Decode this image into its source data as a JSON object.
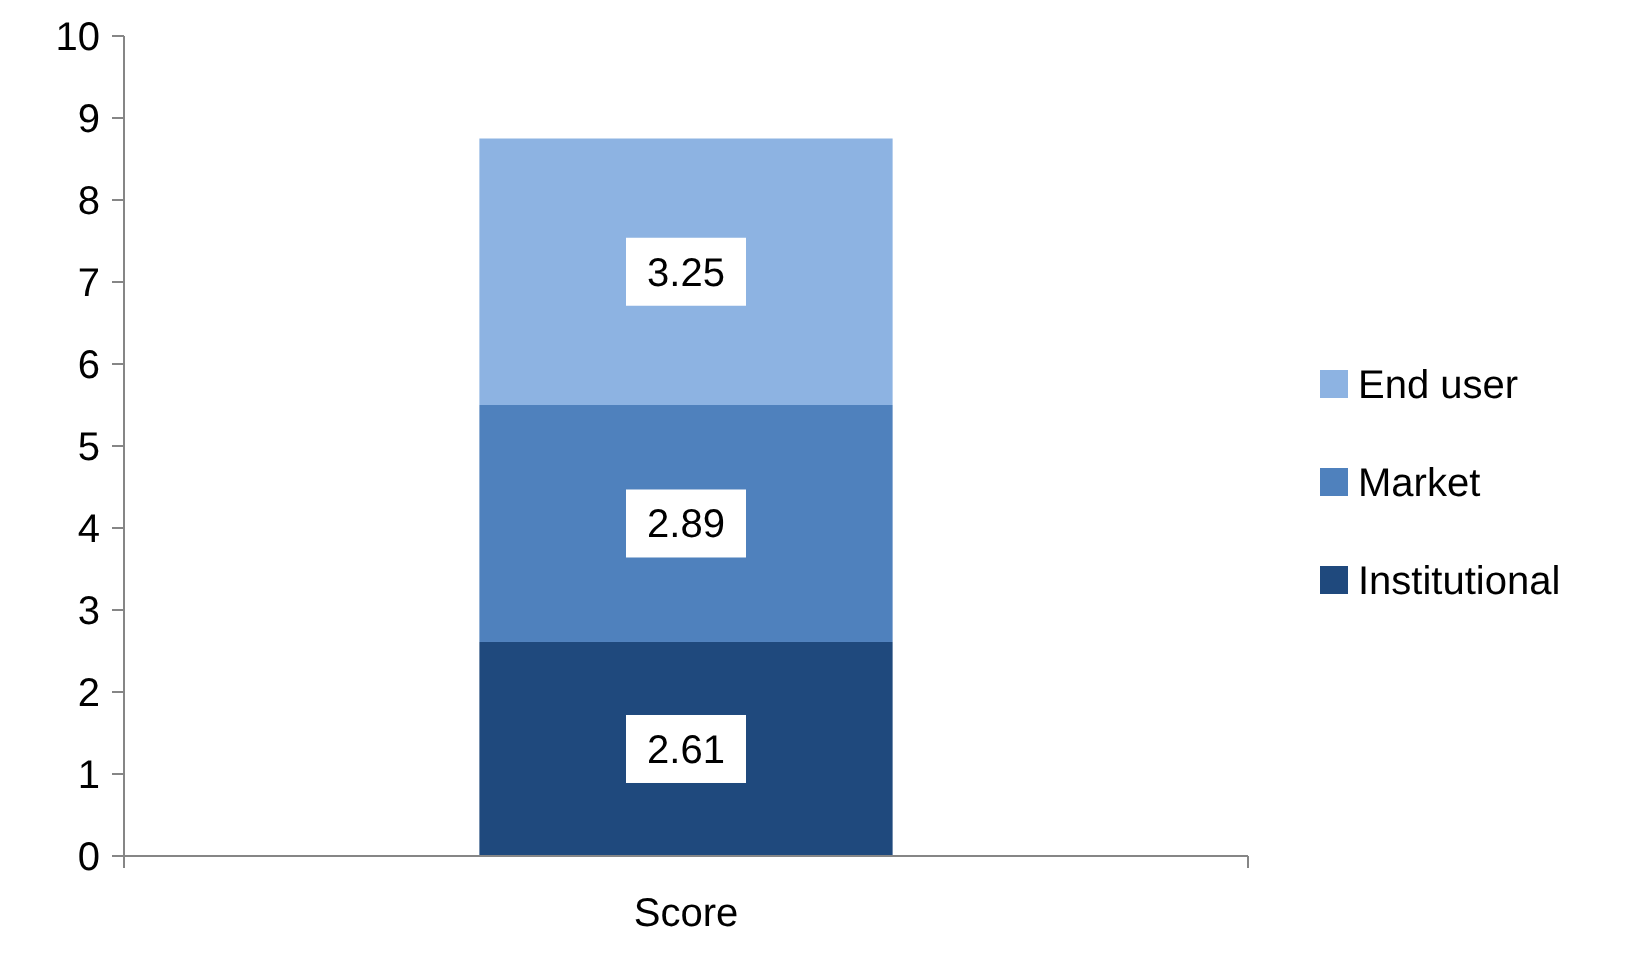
{
  "chart_data": {
    "type": "bar",
    "stacked": true,
    "categories": [
      "Score"
    ],
    "series": [
      {
        "name": "Institutional",
        "color": "#1f497d",
        "values": [
          2.61
        ]
      },
      {
        "name": "Market",
        "color": "#4f81bd",
        "values": [
          2.89
        ]
      },
      {
        "name": "End user",
        "color": "#8db3e2",
        "values": [
          3.25
        ]
      }
    ],
    "ylim": [
      0,
      10
    ],
    "yticks": [
      0,
      1,
      2,
      3,
      4,
      5,
      6,
      7,
      8,
      9,
      10
    ],
    "grid": false,
    "legend": "right",
    "data_labels": true
  }
}
